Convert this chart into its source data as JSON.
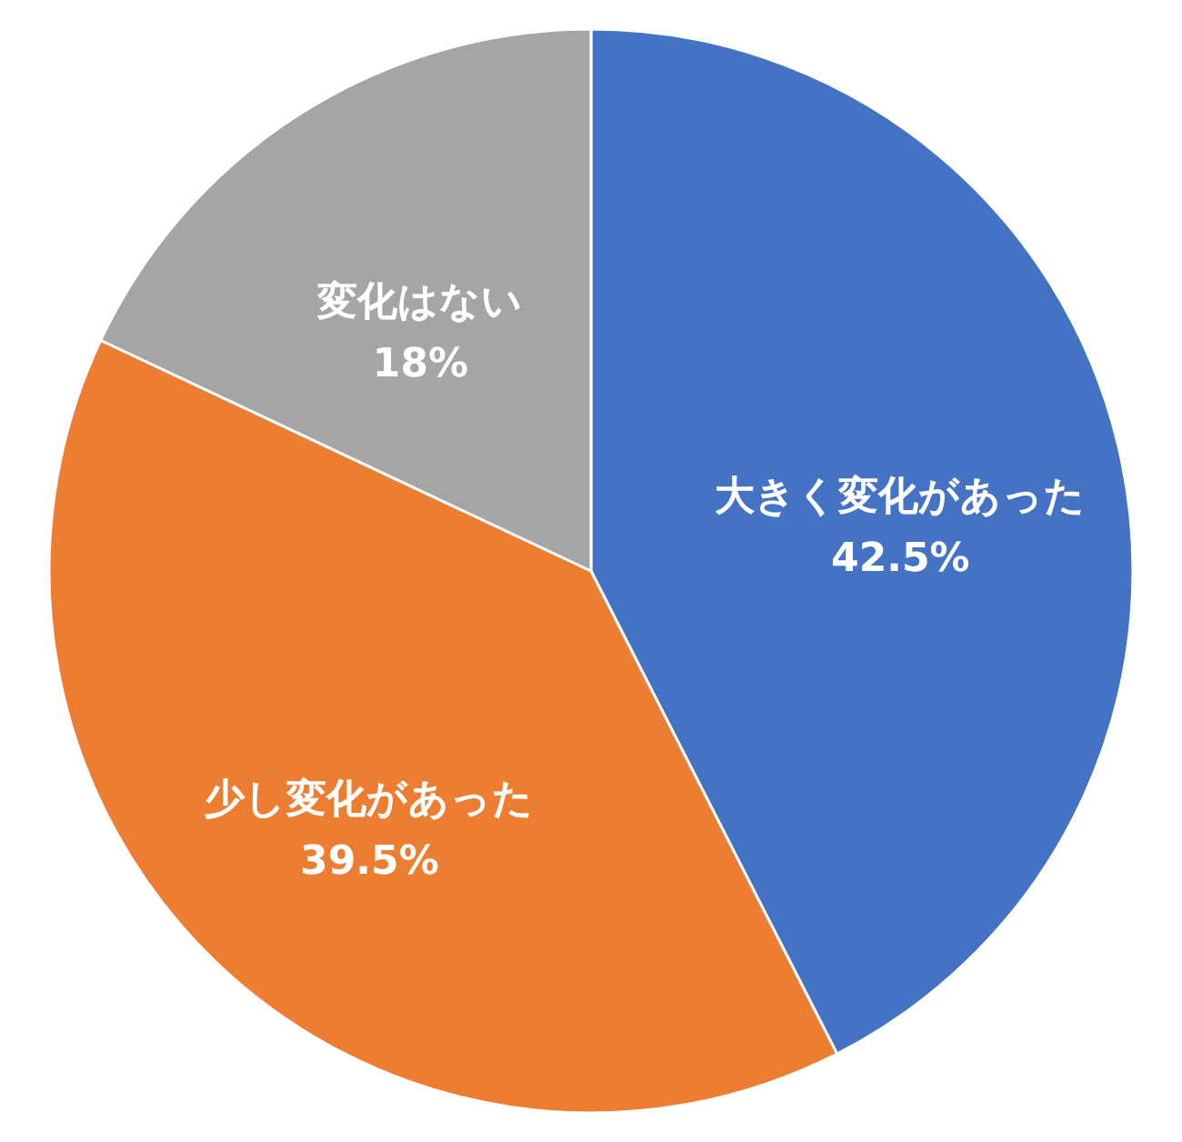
{
  "chart_data": {
    "type": "pie",
    "categories": [
      "大きく変化があった",
      "少し変化があった",
      "変化はない"
    ],
    "values": [
      42.5,
      39.5,
      18
    ],
    "colors": [
      "#4472c4",
      "#ed7d31",
      "#a5a5a5"
    ],
    "data_labels": true,
    "value_labels": [
      "42.5%",
      "39.5%",
      "18%"
    ]
  }
}
